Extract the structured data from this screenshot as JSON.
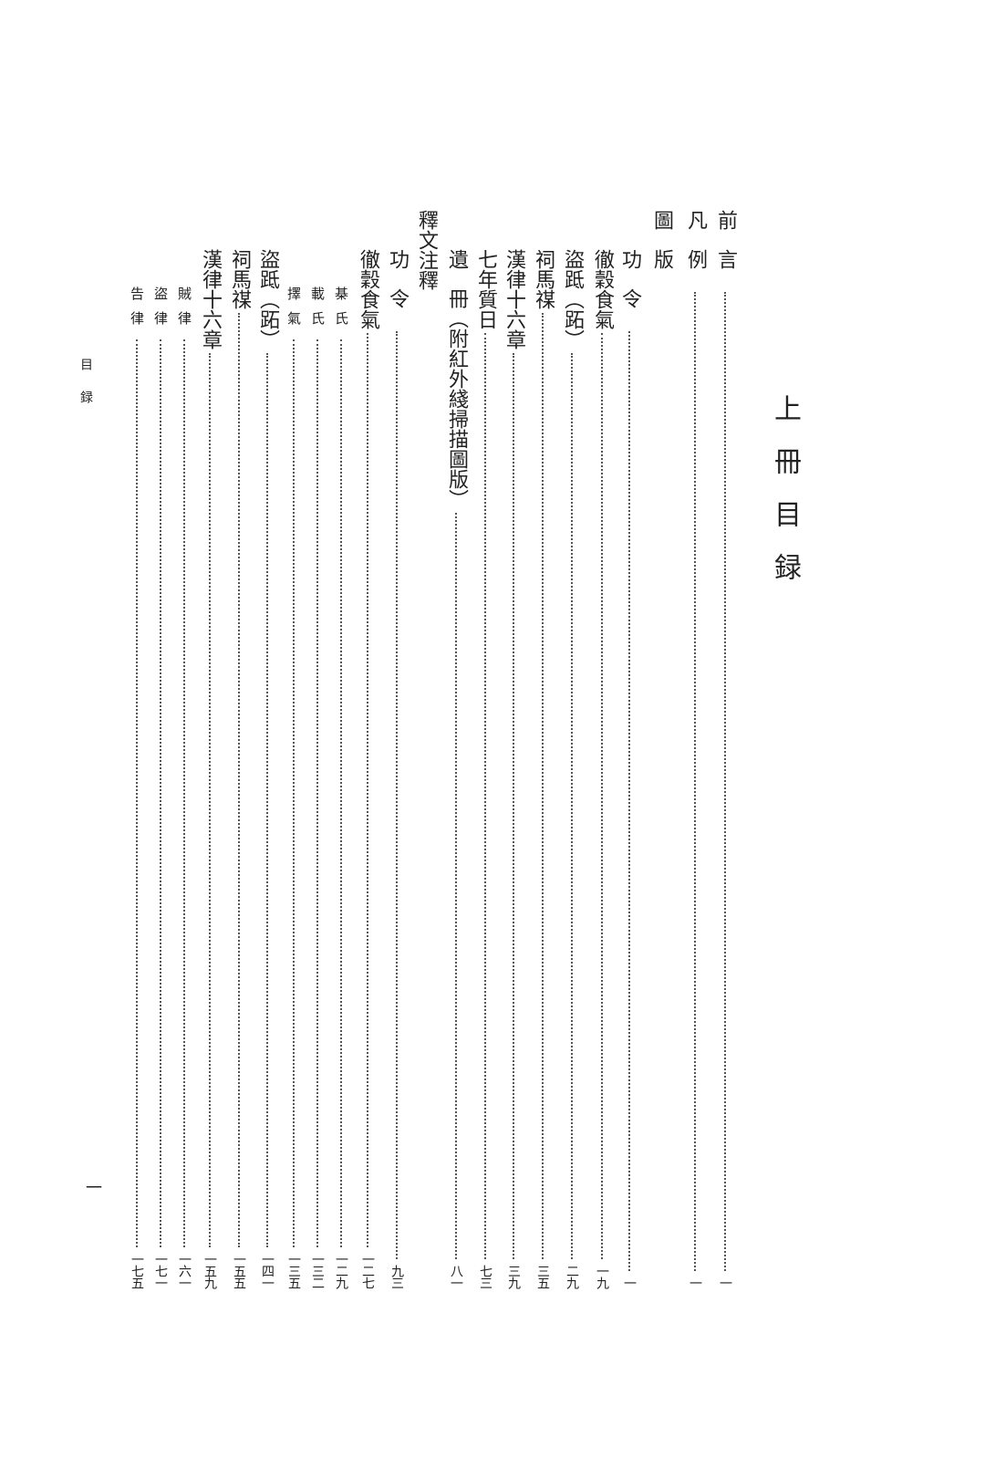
{
  "title": "上冊目録",
  "running_header": "目録",
  "folio": "一",
  "entries": [
    {
      "label": "前言",
      "page": "一"
    },
    {
      "label": "凡例",
      "page": "一"
    },
    {
      "label": "圖版",
      "page": ""
    },
    {
      "label": "功令",
      "page": "一"
    },
    {
      "label": "徹穀食氣",
      "page": "一九"
    },
    {
      "label": "盜䟡（跖）",
      "page": "二九"
    },
    {
      "label": "祠馬禖",
      "page": "三五"
    },
    {
      "label": "漢律十六章",
      "page": "三九"
    },
    {
      "label": "七年質日",
      "page": "七三"
    },
    {
      "label": "遺冊（附紅外綫掃描圖版）",
      "page": "八一"
    },
    {
      "label": "釋文注釋",
      "page": ""
    },
    {
      "label": "功令",
      "page": "九三"
    },
    {
      "label": "徹穀食氣",
      "page": "一二七"
    },
    {
      "label": "棊氏",
      "page": "一二九"
    },
    {
      "label": "載氏",
      "page": "一三二"
    },
    {
      "label": "擇氣",
      "page": "一三五"
    },
    {
      "label": "盜䟡（跖）",
      "page": "一四一"
    },
    {
      "label": "祠馬禖",
      "page": "一五五"
    },
    {
      "label": "漢律十六章",
      "page": "一五九"
    },
    {
      "label": "賊律",
      "page": "一六一"
    },
    {
      "label": "盜律",
      "page": "一七一"
    },
    {
      "label": "告律",
      "page": "一七五"
    }
  ]
}
